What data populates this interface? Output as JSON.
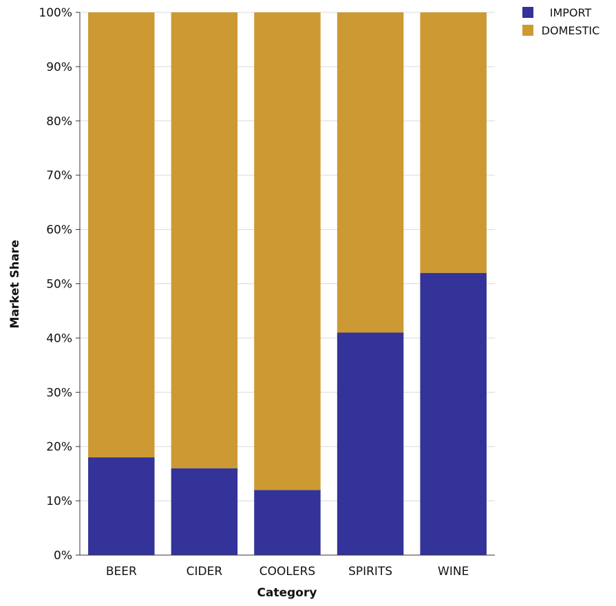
{
  "chart_data": {
    "type": "bar",
    "stacked": true,
    "categories": [
      "BEER",
      "CIDER",
      "COOLERS",
      "SPIRITS",
      "WINE"
    ],
    "series": [
      {
        "name": "IMPORT",
        "color": "#333399",
        "values": [
          18,
          16,
          12,
          41,
          52
        ]
      },
      {
        "name": "DOMESTIC",
        "color": "#cc9933",
        "values": [
          82,
          84,
          88,
          59,
          48
        ]
      }
    ],
    "xlabel": "Category",
    "ylabel": "Market Share",
    "ylim": [
      0,
      100
    ],
    "yticks": [
      "0%",
      "10%",
      "20%",
      "30%",
      "40%",
      "50%",
      "60%",
      "70%",
      "80%",
      "90%",
      "100%"
    ],
    "grid": true,
    "legend_position": "top-right"
  }
}
